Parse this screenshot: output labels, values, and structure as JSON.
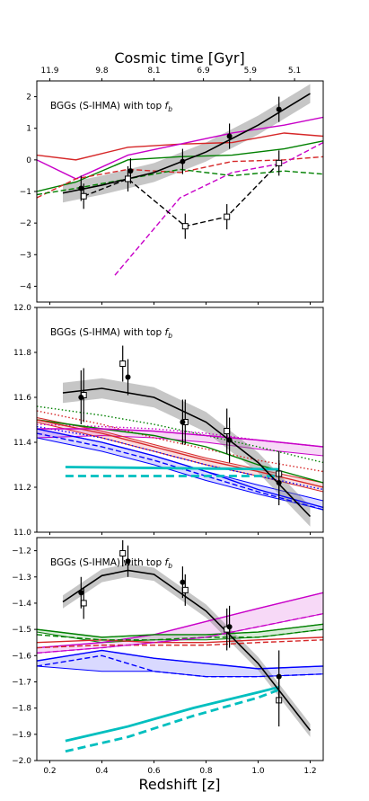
{
  "figure": {
    "top_axis_label": "Cosmic time [Gyr]",
    "x_label": "Redshift [z]"
  },
  "chart_data": [
    {
      "type": "line",
      "panel": "top",
      "title": "BGGs (S-IHMA) with top f_b",
      "xlim": [
        0.15,
        1.25
      ],
      "ylim": [
        -4.5,
        2.5
      ],
      "x_ticks": [
        "0.2",
        "0.4",
        "0.6",
        "0.8",
        "1.0",
        "1.2"
      ],
      "y_ticks": [
        -4,
        -3,
        -2,
        -1,
        0,
        1,
        2
      ],
      "top_axis": {
        "label": "Cosmic time [Gyr]",
        "ticks": [
          {
            "label": "11.9",
            "z": 0.2
          },
          {
            "label": "9.8",
            "z": 0.4
          },
          {
            "label": "8.1",
            "z": 0.6
          },
          {
            "label": "6.9",
            "z": 0.79
          },
          {
            "label": "5.9",
            "z": 0.97
          },
          {
            "label": "5.1",
            "z": 1.14
          }
        ]
      },
      "series": [
        {
          "style": "solid",
          "color": "#d62728",
          "x": [
            0.15,
            0.3,
            0.5,
            0.7,
            0.9,
            1.1,
            1.25
          ],
          "y": [
            0.15,
            0.0,
            0.4,
            0.5,
            0.55,
            0.85,
            0.75
          ]
        },
        {
          "style": "solid",
          "color": "#c800c8",
          "x": [
            0.15,
            0.3,
            0.5,
            0.7,
            0.9,
            1.1,
            1.25
          ],
          "y": [
            0.0,
            -0.6,
            0.15,
            0.5,
            0.85,
            1.1,
            1.35
          ]
        },
        {
          "style": "solid",
          "color": "#008000",
          "x": [
            0.15,
            0.3,
            0.5,
            0.7,
            0.9,
            1.1,
            1.25
          ],
          "y": [
            -1.0,
            -0.7,
            0.0,
            0.1,
            0.15,
            0.35,
            0.6
          ]
        },
        {
          "style": "dashed",
          "color": "#d62728",
          "x": [
            0.15,
            0.3,
            0.5,
            0.7,
            0.9,
            1.1,
            1.25
          ],
          "y": [
            -1.2,
            -0.6,
            -0.3,
            -0.4,
            -0.05,
            0.0,
            0.1
          ]
        },
        {
          "style": "dashed",
          "color": "#008000",
          "x": [
            0.15,
            0.3,
            0.5,
            0.7,
            0.9,
            1.1,
            1.25
          ],
          "y": [
            -1.1,
            -0.9,
            -0.6,
            -0.3,
            -0.5,
            -0.35,
            -0.45
          ]
        },
        {
          "style": "dashed",
          "color": "#c800c8",
          "x": [
            0.45,
            0.7,
            0.9,
            1.1,
            1.25
          ],
          "y": [
            -3.65,
            -1.2,
            -0.4,
            -0.1,
            0.55
          ]
        },
        {
          "style": "dashed",
          "color": "#000000",
          "marker": "open-square",
          "x": [
            0.33,
            0.5,
            0.72,
            0.88,
            1.08
          ],
          "y": [
            -1.15,
            -0.6,
            -2.1,
            -1.8,
            -0.1
          ],
          "yerr": [
            0.4,
            0.4,
            0.4,
            0.4,
            0.4
          ]
        },
        {
          "style": "points",
          "color": "#000000",
          "marker": "filled-circle",
          "x": [
            0.32,
            0.51,
            0.71,
            0.89,
            1.08
          ],
          "y": [
            -0.9,
            -0.35,
            -0.05,
            0.75,
            1.6
          ],
          "yerr": [
            0.4,
            0.4,
            0.4,
            0.4,
            0.4
          ]
        },
        {
          "style": "fit",
          "color": "#000000",
          "band_halfwidth": 0.3,
          "x": [
            0.25,
            0.4,
            0.6,
            0.8,
            1.0,
            1.2
          ],
          "y": [
            -1.05,
            -0.8,
            -0.4,
            0.25,
            1.1,
            2.1
          ]
        }
      ]
    },
    {
      "type": "line",
      "panel": "middle",
      "title": "BGGs (S-IHMA) with top f_b",
      "xlim": [
        0.15,
        1.25
      ],
      "ylim": [
        11.0,
        12.0
      ],
      "x_ticks": [
        "0.2",
        "0.4",
        "0.6",
        "0.8",
        "1.0",
        "1.2"
      ],
      "y_ticks": [
        "11.0",
        "11.2",
        "11.4",
        "11.6",
        "11.8",
        "12.0"
      ],
      "series": [
        {
          "style": "dotted",
          "color": "#008000",
          "x": [
            0.15,
            0.4,
            0.6,
            0.8,
            1.0,
            1.25
          ],
          "y": [
            11.56,
            11.52,
            11.48,
            11.43,
            11.38,
            11.31
          ]
        },
        {
          "style": "dotted",
          "color": "#d62728",
          "x": [
            0.15,
            0.4,
            0.6,
            0.8,
            1.0,
            1.25
          ],
          "y": [
            11.54,
            11.48,
            11.42,
            11.37,
            11.32,
            11.27
          ]
        },
        {
          "style": "dotted",
          "color": "#c800c8",
          "x": [
            0.15,
            0.4,
            0.6,
            0.8,
            1.0,
            1.25
          ],
          "y": [
            11.48,
            11.47,
            11.46,
            11.44,
            11.41,
            11.38
          ]
        },
        {
          "style": "dotted",
          "color": "#0000ff",
          "x": [
            0.15,
            0.4,
            0.6,
            0.8,
            1.0,
            1.25
          ],
          "y": [
            11.47,
            11.42,
            11.36,
            11.3,
            11.25,
            11.19
          ]
        },
        {
          "style": "band",
          "color": "#c800c8",
          "x": [
            0.15,
            0.4,
            0.6,
            0.8,
            1.0,
            1.25
          ],
          "y_low": [
            11.42,
            11.43,
            11.42,
            11.4,
            11.37,
            11.34
          ],
          "y_high": [
            11.46,
            11.46,
            11.45,
            11.43,
            11.41,
            11.38
          ]
        },
        {
          "style": "band",
          "color": "#d62728",
          "x": [
            0.15,
            0.4,
            0.6,
            0.8,
            1.0,
            1.25
          ],
          "y_low": [
            11.49,
            11.42,
            11.36,
            11.3,
            11.25,
            11.18
          ],
          "y_high": [
            11.51,
            11.45,
            11.39,
            11.33,
            11.28,
            11.22
          ]
        },
        {
          "style": "band",
          "color": "#0000ff",
          "x": [
            0.15,
            0.4,
            0.6,
            0.8,
            1.0,
            1.25
          ],
          "y_low": [
            11.42,
            11.36,
            11.3,
            11.23,
            11.17,
            11.1
          ],
          "y_high": [
            11.46,
            11.4,
            11.34,
            11.27,
            11.21,
            11.14
          ]
        },
        {
          "style": "solid",
          "color": "#008000",
          "x": [
            0.15,
            0.4,
            0.6,
            0.8,
            1.0,
            1.25
          ],
          "y": [
            11.5,
            11.46,
            11.43,
            11.38,
            11.3,
            11.22
          ]
        },
        {
          "style": "solid",
          "color": "#d62728",
          "x": [
            0.15,
            0.4,
            0.6,
            0.8,
            1.0,
            1.25
          ],
          "y": [
            11.5,
            11.44,
            11.38,
            11.32,
            11.27,
            11.2
          ]
        },
        {
          "style": "solid",
          "color": "#c800c8",
          "x": [
            0.15,
            0.4,
            0.6,
            0.8,
            1.0,
            1.25
          ],
          "y": [
            11.46,
            11.46,
            11.45,
            11.43,
            11.41,
            11.38
          ]
        },
        {
          "style": "solid",
          "color": "#0000ff",
          "x": [
            0.15,
            0.4,
            0.6,
            0.8,
            1.0,
            1.25
          ],
          "y": [
            11.46,
            11.4,
            11.34,
            11.27,
            11.19,
            11.11
          ]
        },
        {
          "style": "dashed",
          "color": "#0000ff",
          "x": [
            0.15,
            0.4,
            0.6,
            0.8,
            1.0,
            1.25
          ],
          "y": [
            11.44,
            11.38,
            11.32,
            11.25,
            11.18,
            11.1
          ]
        },
        {
          "style": "solid-thick",
          "color": "#00bfbf",
          "x": [
            0.26,
            1.08
          ],
          "y": [
            11.29,
            11.28
          ]
        },
        {
          "style": "dashed-thick",
          "color": "#00bfbf",
          "x": [
            0.26,
            1.08
          ],
          "y": [
            11.25,
            11.25
          ]
        },
        {
          "style": "points",
          "color": "#000000",
          "marker": "open-square",
          "x": [
            0.33,
            0.48,
            0.72,
            0.88,
            1.08
          ],
          "y": [
            11.61,
            11.75,
            11.49,
            11.45,
            11.26
          ],
          "yerr": [
            0.12,
            0.08,
            0.1,
            0.1,
            0.1
          ]
        },
        {
          "style": "points",
          "color": "#000000",
          "marker": "filled-circle",
          "x": [
            0.32,
            0.5,
            0.71,
            0.89,
            1.08
          ],
          "y": [
            11.6,
            11.69,
            11.49,
            11.41,
            11.22
          ],
          "yerr": [
            0.12,
            0.08,
            0.1,
            0.1,
            0.1
          ]
        },
        {
          "style": "fit",
          "color": "#000000",
          "band_halfwidth": 0.045,
          "x": [
            0.25,
            0.4,
            0.6,
            0.8,
            1.0,
            1.2
          ],
          "y": [
            11.62,
            11.64,
            11.6,
            11.49,
            11.31,
            11.07
          ]
        }
      ]
    },
    {
      "type": "line",
      "panel": "bottom",
      "title": "BGGs (S-IHMA) with top f_b",
      "xlim": [
        0.15,
        1.25
      ],
      "ylim": [
        -2.0,
        -1.15
      ],
      "x_ticks": [
        "0.2",
        "0.4",
        "0.6",
        "0.8",
        "1.0",
        "1.2"
      ],
      "y_ticks": [
        "-2.0",
        "-1.9",
        "-1.8",
        "-1.7",
        "-1.6",
        "-1.5",
        "-1.4",
        "-1.3",
        "-1.2"
      ],
      "series": [
        {
          "style": "band",
          "color": "#c800c8",
          "x": [
            0.15,
            0.4,
            0.6,
            0.8,
            1.0,
            1.25
          ],
          "y_low": [
            -1.59,
            -1.57,
            -1.55,
            -1.53,
            -1.49,
            -1.44
          ],
          "y_high": [
            -1.57,
            -1.55,
            -1.52,
            -1.47,
            -1.42,
            -1.36
          ]
        },
        {
          "style": "band",
          "color": "#008000",
          "x": [
            0.15,
            0.4,
            0.6,
            0.8,
            1.0,
            1.25
          ],
          "y_low": [
            -1.51,
            -1.55,
            -1.54,
            -1.54,
            -1.53,
            -1.5
          ],
          "y_high": [
            -1.5,
            -1.53,
            -1.52,
            -1.52,
            -1.51,
            -1.48
          ]
        },
        {
          "style": "band",
          "color": "#0000ff",
          "x": [
            0.15,
            0.4,
            0.6,
            0.8,
            1.0,
            1.25
          ],
          "y_low": [
            -1.64,
            -1.66,
            -1.66,
            -1.68,
            -1.68,
            -1.67
          ],
          "y_high": [
            -1.62,
            -1.58,
            -1.61,
            -1.63,
            -1.65,
            -1.64
          ]
        },
        {
          "style": "solid",
          "color": "#c800c8",
          "x": [
            0.15,
            0.4,
            0.6,
            0.8,
            1.0,
            1.25
          ],
          "y": [
            -1.57,
            -1.55,
            -1.52,
            -1.47,
            -1.42,
            -1.36
          ]
        },
        {
          "style": "solid",
          "color": "#008000",
          "x": [
            0.15,
            0.4,
            0.6,
            0.8,
            1.0,
            1.25
          ],
          "y": [
            -1.5,
            -1.53,
            -1.52,
            -1.52,
            -1.51,
            -1.48
          ]
        },
        {
          "style": "solid",
          "color": "#d62728",
          "x": [
            0.15,
            0.4,
            0.6,
            0.8,
            1.0,
            1.25
          ],
          "y": [
            -1.55,
            -1.54,
            -1.55,
            -1.55,
            -1.54,
            -1.53
          ]
        },
        {
          "style": "solid",
          "color": "#0000ff",
          "x": [
            0.15,
            0.4,
            0.6,
            0.8,
            1.0,
            1.25
          ],
          "y": [
            -1.62,
            -1.58,
            -1.61,
            -1.63,
            -1.65,
            -1.64
          ]
        },
        {
          "style": "dashed",
          "color": "#008000",
          "x": [
            0.15,
            0.4,
            0.6,
            0.8,
            1.0,
            1.25
          ],
          "y": [
            -1.52,
            -1.54,
            -1.54,
            -1.53,
            -1.53,
            -1.5
          ]
        },
        {
          "style": "dashed",
          "color": "#d62728",
          "x": [
            0.15,
            0.4,
            0.6,
            0.8,
            1.0,
            1.25
          ],
          "y": [
            -1.57,
            -1.56,
            -1.56,
            -1.56,
            -1.55,
            -1.54
          ]
        },
        {
          "style": "dashed",
          "color": "#c800c8",
          "x": [
            0.15,
            0.4,
            0.6,
            0.8,
            1.0,
            1.25
          ],
          "y": [
            -1.59,
            -1.57,
            -1.55,
            -1.53,
            -1.49,
            -1.44
          ]
        },
        {
          "style": "dashed",
          "color": "#0000ff",
          "x": [
            0.15,
            0.4,
            0.6,
            0.8,
            1.0,
            1.25
          ],
          "y": [
            -1.64,
            -1.6,
            -1.66,
            -1.68,
            -1.68,
            -1.67
          ]
        },
        {
          "style": "solid-thick",
          "color": "#00bfbf",
          "x": [
            0.26,
            0.5,
            0.75,
            1.0,
            1.08
          ],
          "y": [
            -1.925,
            -1.87,
            -1.8,
            -1.74,
            -1.72
          ]
        },
        {
          "style": "dashed-thick",
          "color": "#00bfbf",
          "x": [
            0.26,
            0.5,
            0.75,
            1.0,
            1.08
          ],
          "y": [
            -1.965,
            -1.91,
            -1.83,
            -1.76,
            -1.73
          ]
        },
        {
          "style": "points",
          "color": "#000000",
          "marker": "open-square",
          "x": [
            0.33,
            0.48,
            0.72,
            0.88,
            1.08
          ],
          "y": [
            -1.4,
            -1.21,
            -1.35,
            -1.5,
            -1.77
          ],
          "yerr": [
            0.06,
            0.05,
            0.06,
            0.08,
            0.1
          ]
        },
        {
          "style": "points",
          "color": "#000000",
          "marker": "filled-circle",
          "x": [
            0.32,
            0.5,
            0.71,
            0.89,
            1.08
          ],
          "y": [
            -1.36,
            -1.24,
            -1.32,
            -1.49,
            -1.68
          ],
          "yerr": [
            0.06,
            0.06,
            0.06,
            0.08,
            0.1
          ]
        },
        {
          "style": "fit",
          "color": "#000000",
          "band_halfwidth": 0.025,
          "x": [
            0.25,
            0.4,
            0.5,
            0.6,
            0.8,
            1.0,
            1.2
          ],
          "y": [
            -1.395,
            -1.295,
            -1.275,
            -1.29,
            -1.43,
            -1.63,
            -1.885
          ]
        }
      ]
    }
  ]
}
